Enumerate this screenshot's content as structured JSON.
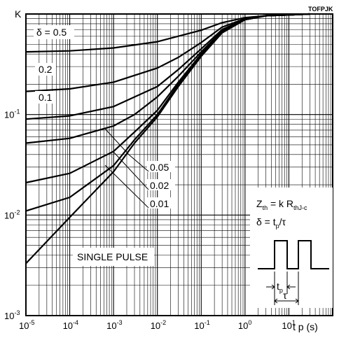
{
  "chart_data": {
    "type": "line",
    "code": "TOFPJK",
    "ylabel": "K",
    "xlabel": "t p (s)",
    "x_scale": "log",
    "y_scale": "log",
    "xlim": [
      1e-05,
      100
    ],
    "ylim": [
      0.001,
      1
    ],
    "grid": true,
    "x_ticks": [
      {
        "base": "10",
        "exp": "-5"
      },
      {
        "base": "10",
        "exp": "-4"
      },
      {
        "base": "10",
        "exp": "-3"
      },
      {
        "base": "10",
        "exp": "-2"
      },
      {
        "base": "10",
        "exp": "-1"
      },
      {
        "base": "10",
        "exp": "0"
      },
      {
        "base": "10",
        "exp": "1"
      }
    ],
    "y_ticks": [
      {
        "base": "10",
        "exp": "-1"
      },
      {
        "base": "10",
        "exp": "-2"
      },
      {
        "base": "10",
        "exp": "-3"
      }
    ],
    "series": [
      {
        "name": "δ = 0.5",
        "x": [
          1e-05,
          0.0001,
          0.001,
          0.01,
          0.1,
          0.3,
          1,
          3,
          10,
          30
        ],
        "y": [
          0.42,
          0.43,
          0.46,
          0.53,
          0.69,
          0.82,
          0.92,
          0.96,
          0.98,
          1.0
        ]
      },
      {
        "name": "0.2",
        "x": [
          1e-05,
          0.0001,
          0.001,
          0.01,
          0.03,
          0.1,
          0.3,
          1,
          3,
          10,
          30
        ],
        "y": [
          0.17,
          0.18,
          0.21,
          0.29,
          0.37,
          0.52,
          0.74,
          0.9,
          0.96,
          0.98,
          1.0
        ]
      },
      {
        "name": "0.1",
        "x": [
          1e-05,
          0.0001,
          0.001,
          0.01,
          0.03,
          0.1,
          0.3,
          1,
          3,
          10,
          30
        ],
        "y": [
          0.09,
          0.097,
          0.12,
          0.19,
          0.28,
          0.45,
          0.7,
          0.89,
          0.96,
          0.98,
          1.0
        ]
      },
      {
        "name": "0.05",
        "x": [
          1e-05,
          0.0001,
          0.001,
          0.003,
          0.01,
          0.03,
          0.1,
          0.3,
          1,
          3,
          10,
          30
        ],
        "y": [
          0.052,
          0.058,
          0.077,
          0.1,
          0.15,
          0.24,
          0.42,
          0.68,
          0.88,
          0.96,
          0.98,
          1.0
        ]
      },
      {
        "name": "0.02",
        "x": [
          1e-05,
          0.0001,
          0.001,
          0.003,
          0.01,
          0.03,
          0.1,
          0.3,
          1,
          3,
          10,
          30
        ],
        "y": [
          0.021,
          0.026,
          0.043,
          0.067,
          0.11,
          0.21,
          0.4,
          0.67,
          0.88,
          0.96,
          0.98,
          1.0
        ]
      },
      {
        "name": "0.01",
        "x": [
          1e-05,
          0.0001,
          0.001,
          0.003,
          0.01,
          0.03,
          0.1,
          0.3,
          1,
          3,
          10,
          30
        ],
        "y": [
          0.011,
          0.015,
          0.031,
          0.056,
          0.1,
          0.2,
          0.39,
          0.66,
          0.88,
          0.96,
          0.98,
          1.0
        ]
      },
      {
        "name": "SINGLE PULSE",
        "x": [
          1e-05,
          0.0001,
          0.001,
          0.003,
          0.01,
          0.03,
          0.1,
          0.3,
          1,
          3,
          10,
          30
        ],
        "y": [
          0.0033,
          0.0095,
          0.027,
          0.052,
          0.095,
          0.19,
          0.38,
          0.65,
          0.88,
          0.96,
          0.98,
          1.0
        ]
      }
    ],
    "formula": {
      "zth": "Z",
      "zth_sub": "th",
      "eq": " = k R",
      "rth_sub": "thJ-c",
      "delta": "δ = t",
      "delta_sub": "p",
      "delta_rest": "/τ",
      "tp": "t",
      "tp_sub": "p",
      "tau": "τ"
    }
  }
}
